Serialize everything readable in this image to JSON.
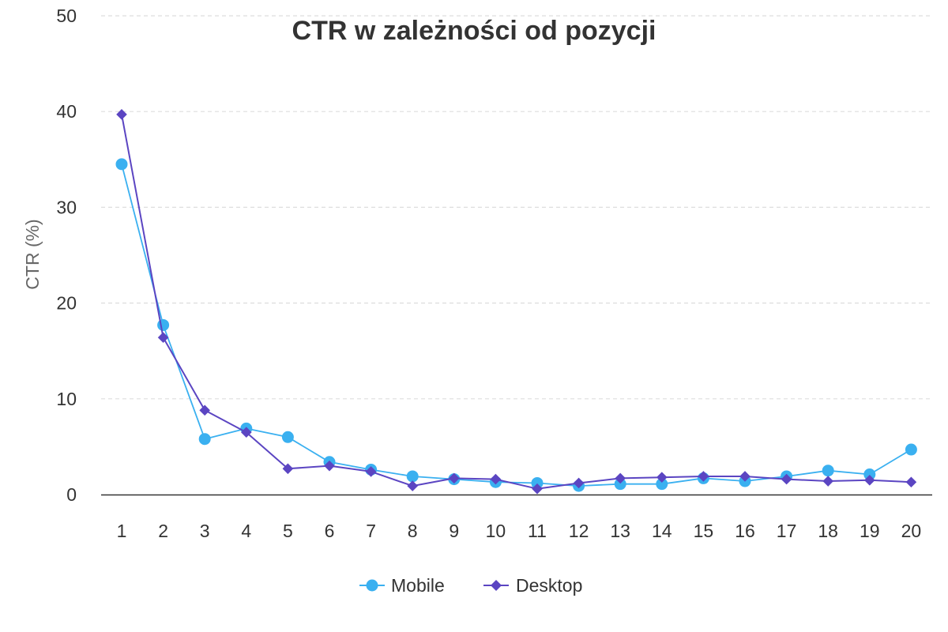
{
  "chart_data": {
    "type": "line",
    "title": "CTR w zależności od pozycji",
    "ylabel": "CTR (%)",
    "xlabel": "",
    "categories": [
      "1",
      "2",
      "3",
      "4",
      "5",
      "6",
      "7",
      "8",
      "9",
      "10",
      "11",
      "12",
      "13",
      "14",
      "15",
      "16",
      "17",
      "18",
      "19",
      "20"
    ],
    "yticks": [
      "0",
      "10",
      "20",
      "30",
      "40",
      "50"
    ],
    "ylim": [
      0,
      50
    ],
    "grid": true,
    "legend_position": "bottom",
    "series": [
      {
        "name": "Mobile",
        "color": "#3ab0f0",
        "marker": "circle",
        "values": [
          34.5,
          17.7,
          5.8,
          6.9,
          6.0,
          3.4,
          2.6,
          1.9,
          1.6,
          1.3,
          1.2,
          0.9,
          1.1,
          1.1,
          1.7,
          1.4,
          1.9,
          2.5,
          2.1,
          4.7
        ]
      },
      {
        "name": "Desktop",
        "color": "#5b45c2",
        "marker": "diamond",
        "values": [
          39.7,
          16.4,
          8.8,
          6.5,
          2.7,
          3.0,
          2.4,
          0.9,
          1.7,
          1.6,
          0.6,
          1.2,
          1.7,
          1.8,
          1.9,
          1.9,
          1.6,
          1.4,
          1.5,
          1.3
        ]
      }
    ]
  }
}
